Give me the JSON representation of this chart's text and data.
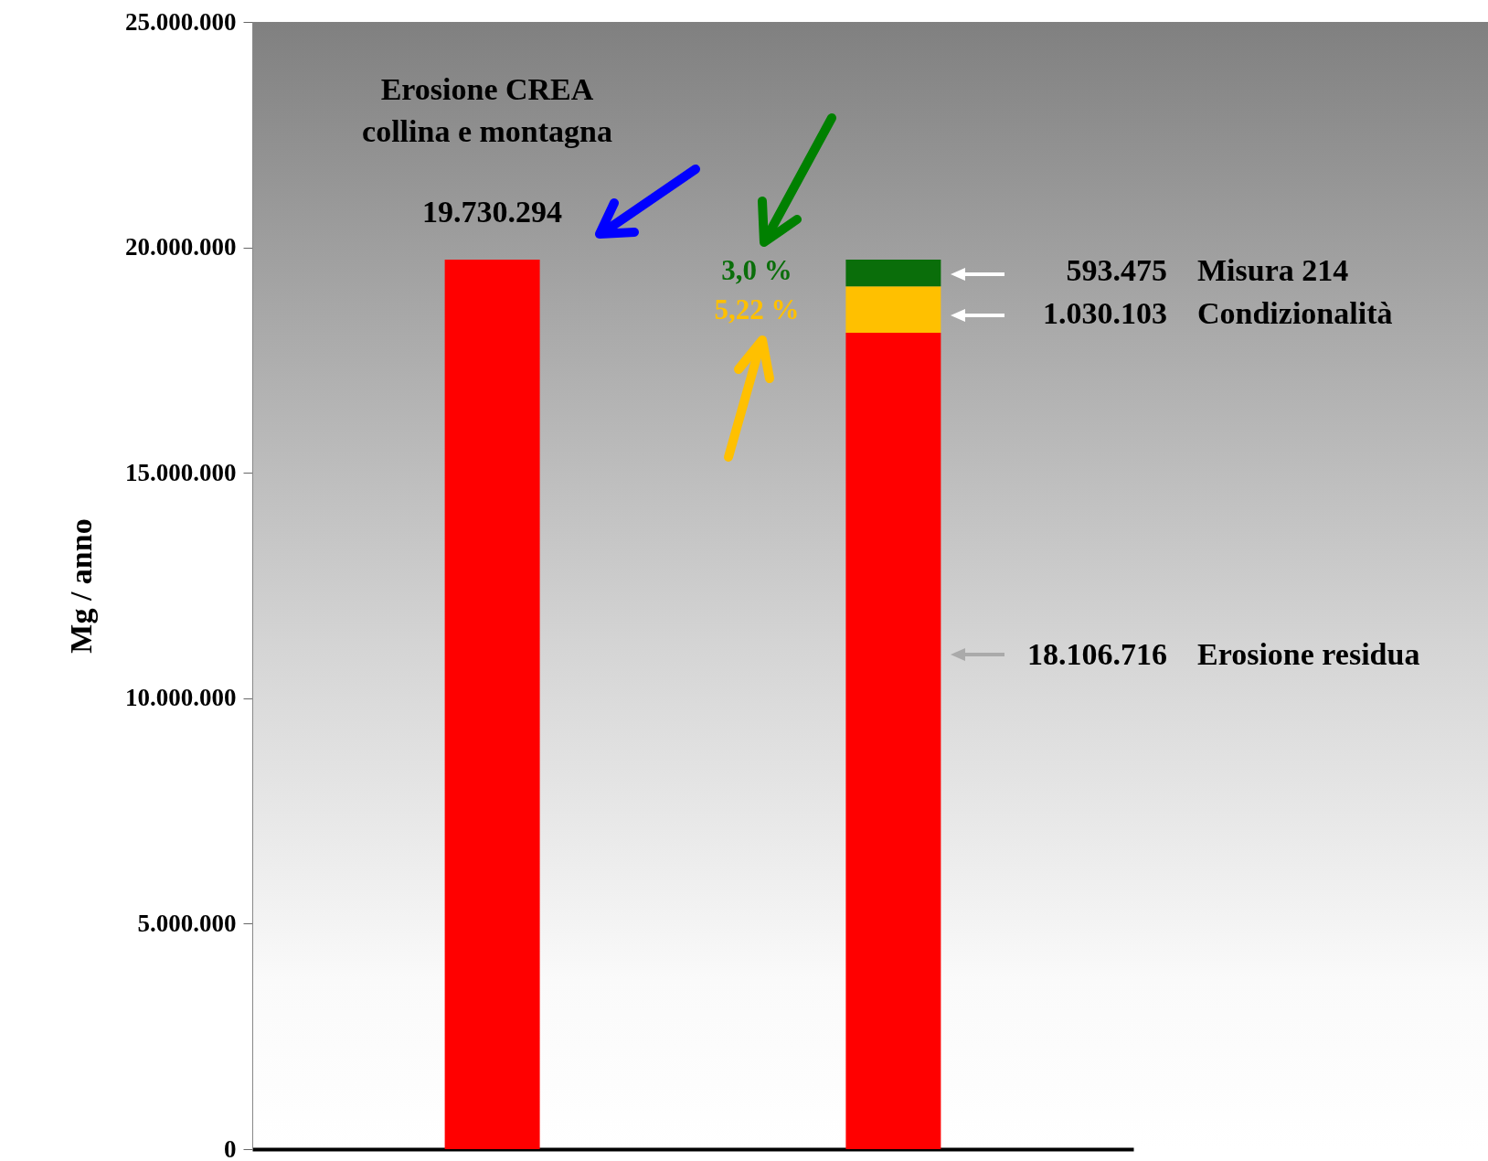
{
  "chart_data": {
    "type": "bar",
    "stacked": true,
    "ylabel": "Mg / anno",
    "categories": [
      null,
      null
    ],
    "series": [
      {
        "color": "#ff0000",
        "values": [
          19730294,
          null
        ],
        "value_labels": [
          "19.730.294",
          null
        ]
      },
      {
        "color": "#ff0000",
        "values": [
          null,
          18106716
        ]
      },
      {
        "color": "#ffc000",
        "values": [
          null,
          1030103
        ]
      },
      {
        "color": "#0a6e0a",
        "values": [
          null,
          593475
        ]
      }
    ],
    "ylim": [
      0,
      25000000
    ],
    "yticks": [
      {
        "value": 0,
        "label": "0"
      },
      {
        "value": 5000000,
        "label": "5.000.000"
      },
      {
        "value": 10000000,
        "label": "10.000.000"
      },
      {
        "value": 15000000,
        "label": "15.000.000"
      },
      {
        "value": 20000000,
        "label": "20.000.000"
      },
      {
        "value": 25000000,
        "label": "25.000.000"
      }
    ],
    "annotations": [
      "Erosione CREA collina e montagna",
      "3,0 %",
      "5,22 %",
      "593.475",
      "Misura 214",
      "1.030.103",
      "Condizionalità",
      "18.106.716",
      "Erosione residua"
    ]
  }
}
